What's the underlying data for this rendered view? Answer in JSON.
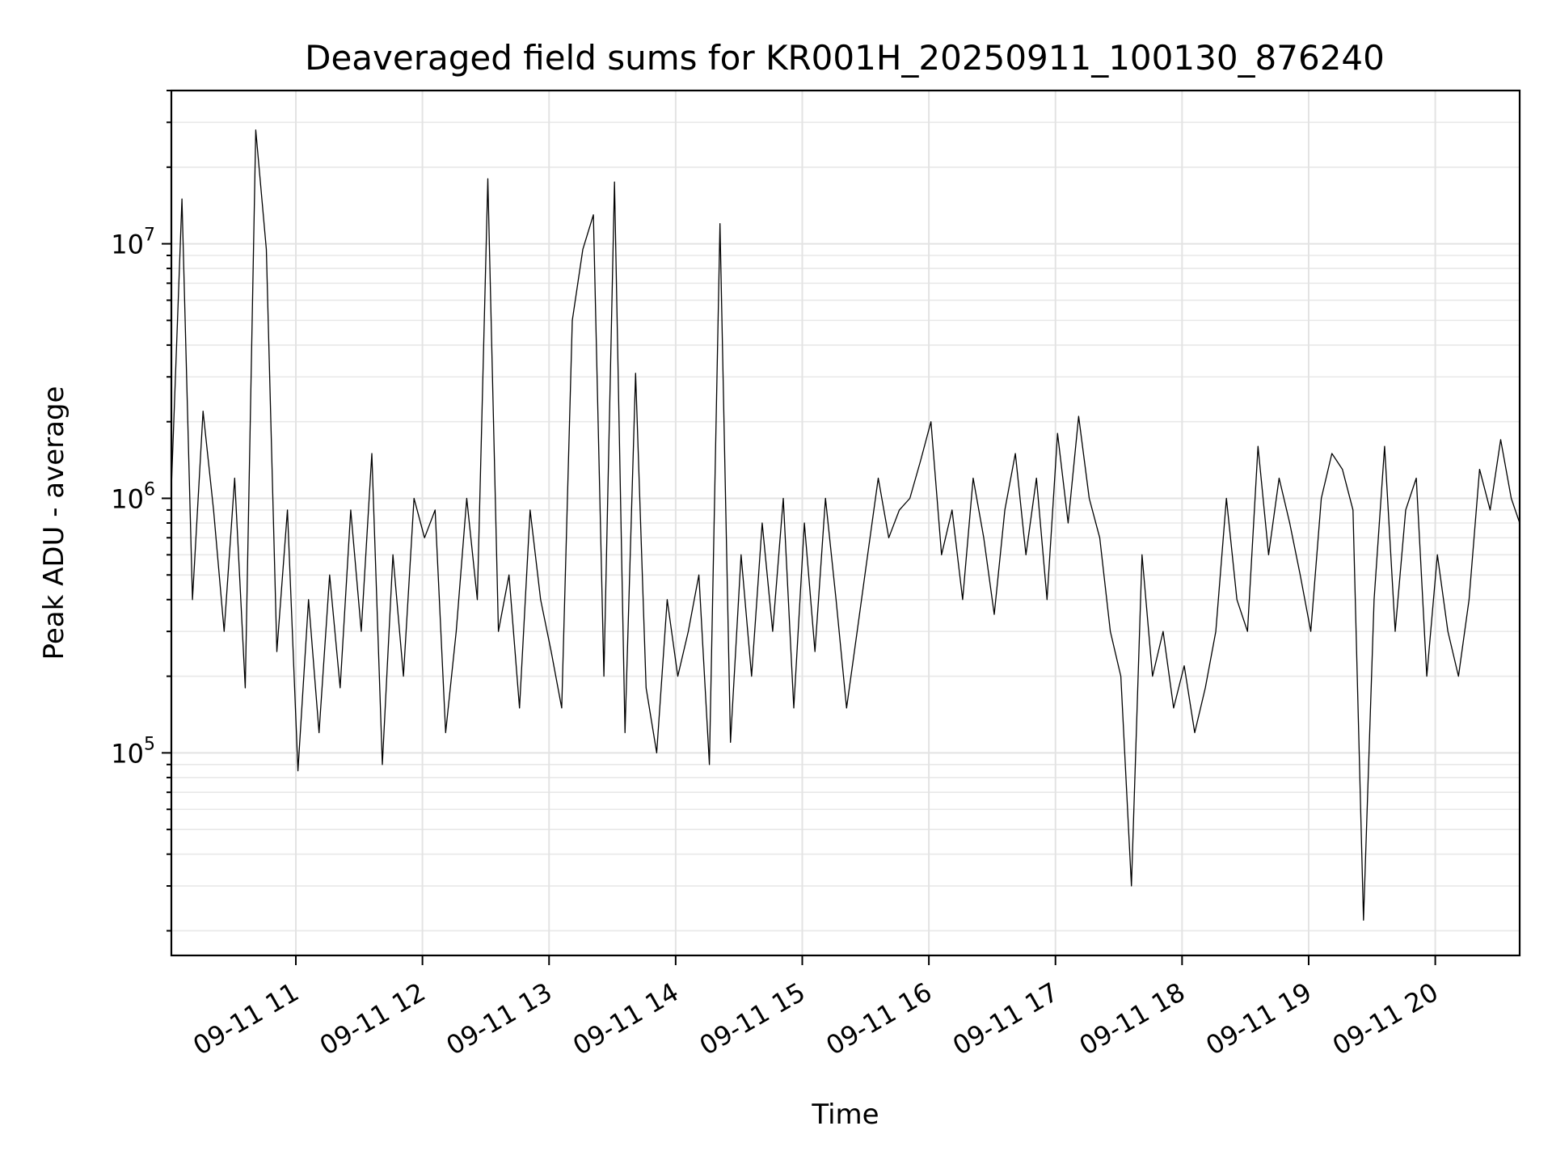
{
  "chart_data": {
    "type": "line",
    "title": "Deaveraged field sums for KR001H_20250911_100130_876240",
    "xlabel": "Time",
    "ylabel": "Peak ADU - average",
    "y_scale": "log",
    "grid": true,
    "series_color": "#000000",
    "x_range": [
      "2025-09-11 10:01",
      "2025-09-11 20:40"
    ],
    "ylim": [
      16000,
      40000000
    ],
    "x_ticks": [
      {
        "value": "2025-09-11 11:00",
        "label": "09-11 11"
      },
      {
        "value": "2025-09-11 12:00",
        "label": "09-11 12"
      },
      {
        "value": "2025-09-11 13:00",
        "label": "09-11 13"
      },
      {
        "value": "2025-09-11 14:00",
        "label": "09-11 14"
      },
      {
        "value": "2025-09-11 15:00",
        "label": "09-11 15"
      },
      {
        "value": "2025-09-11 16:00",
        "label": "09-11 16"
      },
      {
        "value": "2025-09-11 17:00",
        "label": "09-11 17"
      },
      {
        "value": "2025-09-11 18:00",
        "label": "09-11 18"
      },
      {
        "value": "2025-09-11 19:00",
        "label": "09-11 19"
      },
      {
        "value": "2025-09-11 20:00",
        "label": "09-11 20"
      }
    ],
    "y_ticks": [
      {
        "value": 100000,
        "base": "10",
        "exp": "5"
      },
      {
        "value": 1000000,
        "base": "10",
        "exp": "6"
      },
      {
        "value": 10000000,
        "base": "10",
        "exp": "7"
      }
    ],
    "series": [
      {
        "x": [
          "2025-09-11 10:01",
          "2025-09-11 10:06",
          "2025-09-11 10:11",
          "2025-09-11 10:16",
          "2025-09-11 10:21",
          "2025-09-11 10:26",
          "2025-09-11 10:31",
          "2025-09-11 10:36",
          "2025-09-11 10:41",
          "2025-09-11 10:46",
          "2025-09-11 10:51",
          "2025-09-11 10:56",
          "2025-09-11 11:01",
          "2025-09-11 11:06",
          "2025-09-11 11:11",
          "2025-09-11 11:16",
          "2025-09-11 11:21",
          "2025-09-11 11:26",
          "2025-09-11 11:31",
          "2025-09-11 11:36",
          "2025-09-11 11:41",
          "2025-09-11 11:46",
          "2025-09-11 11:51",
          "2025-09-11 11:56",
          "2025-09-11 12:01",
          "2025-09-11 12:06",
          "2025-09-11 12:11",
          "2025-09-11 12:16",
          "2025-09-11 12:21",
          "2025-09-11 12:26",
          "2025-09-11 12:31",
          "2025-09-11 12:36",
          "2025-09-11 12:41",
          "2025-09-11 12:46",
          "2025-09-11 12:51",
          "2025-09-11 12:56",
          "2025-09-11 13:01",
          "2025-09-11 13:06",
          "2025-09-11 13:11",
          "2025-09-11 13:16",
          "2025-09-11 13:21",
          "2025-09-11 13:26",
          "2025-09-11 13:31",
          "2025-09-11 13:36",
          "2025-09-11 13:41",
          "2025-09-11 13:46",
          "2025-09-11 13:51",
          "2025-09-11 13:56",
          "2025-09-11 14:01",
          "2025-09-11 14:06",
          "2025-09-11 14:11",
          "2025-09-11 14:16",
          "2025-09-11 14:21",
          "2025-09-11 14:26",
          "2025-09-11 14:31",
          "2025-09-11 14:36",
          "2025-09-11 14:41",
          "2025-09-11 14:46",
          "2025-09-11 14:51",
          "2025-09-11 14:56",
          "2025-09-11 15:01",
          "2025-09-11 15:06",
          "2025-09-11 15:11",
          "2025-09-11 15:16",
          "2025-09-11 15:21",
          "2025-09-11 15:26",
          "2025-09-11 15:31",
          "2025-09-11 15:36",
          "2025-09-11 15:41",
          "2025-09-11 15:46",
          "2025-09-11 15:51",
          "2025-09-11 15:56",
          "2025-09-11 16:01",
          "2025-09-11 16:06",
          "2025-09-11 16:11",
          "2025-09-11 16:16",
          "2025-09-11 16:21",
          "2025-09-11 16:26",
          "2025-09-11 16:31",
          "2025-09-11 16:36",
          "2025-09-11 16:41",
          "2025-09-11 16:46",
          "2025-09-11 16:51",
          "2025-09-11 16:56",
          "2025-09-11 17:01",
          "2025-09-11 17:06",
          "2025-09-11 17:11",
          "2025-09-11 17:16",
          "2025-09-11 17:21",
          "2025-09-11 17:26",
          "2025-09-11 17:31",
          "2025-09-11 17:36",
          "2025-09-11 17:41",
          "2025-09-11 17:46",
          "2025-09-11 17:51",
          "2025-09-11 17:56",
          "2025-09-11 18:01",
          "2025-09-11 18:06",
          "2025-09-11 18:11",
          "2025-09-11 18:16",
          "2025-09-11 18:21",
          "2025-09-11 18:26",
          "2025-09-11 18:31",
          "2025-09-11 18:36",
          "2025-09-11 18:41",
          "2025-09-11 18:46",
          "2025-09-11 18:51",
          "2025-09-11 18:56",
          "2025-09-11 19:01",
          "2025-09-11 19:06",
          "2025-09-11 19:11",
          "2025-09-11 19:16",
          "2025-09-11 19:21",
          "2025-09-11 19:26",
          "2025-09-11 19:31",
          "2025-09-11 19:36",
          "2025-09-11 19:41",
          "2025-09-11 19:46",
          "2025-09-11 19:51",
          "2025-09-11 19:56",
          "2025-09-11 20:01",
          "2025-09-11 20:06",
          "2025-09-11 20:11",
          "2025-09-11 20:16",
          "2025-09-11 20:21",
          "2025-09-11 20:26",
          "2025-09-11 20:31",
          "2025-09-11 20:36",
          "2025-09-11 20:40"
        ],
        "y": [
          1100000,
          15000000,
          400000,
          2200000,
          900000,
          300000,
          1200000,
          180000,
          28000000,
          9500000,
          250000,
          900000,
          85000,
          400000,
          120000,
          500000,
          180000,
          900000,
          300000,
          1500000,
          90000,
          600000,
          200000,
          1000000,
          700000,
          900000,
          120000,
          300000,
          1000000,
          400000,
          18000000,
          300000,
          500000,
          150000,
          900000,
          400000,
          250000,
          150000,
          5000000,
          9500000,
          13000000,
          200000,
          17500000,
          120000,
          3100000,
          180000,
          100000,
          400000,
          200000,
          300000,
          500000,
          90000,
          12000000,
          110000,
          600000,
          200000,
          800000,
          300000,
          1000000,
          150000,
          800000,
          250000,
          1000000,
          400000,
          150000,
          300000,
          600000,
          1200000,
          700000,
          900000,
          1000000,
          1400000,
          2000000,
          600000,
          900000,
          400000,
          1200000,
          700000,
          350000,
          900000,
          1500000,
          600000,
          1200000,
          400000,
          1800000,
          800000,
          2100000,
          1000000,
          700000,
          300000,
          200000,
          30000,
          600000,
          200000,
          300000,
          150000,
          220000,
          120000,
          180000,
          300000,
          1000000,
          400000,
          300000,
          1600000,
          600000,
          1200000,
          800000,
          500000,
          300000,
          1000000,
          1500000,
          1300000,
          900000,
          22000,
          400000,
          1600000,
          300000,
          900000,
          1200000,
          200000,
          600000,
          300000,
          200000,
          400000,
          1300000,
          900000,
          1700000,
          1000000,
          800000
        ]
      }
    ]
  }
}
